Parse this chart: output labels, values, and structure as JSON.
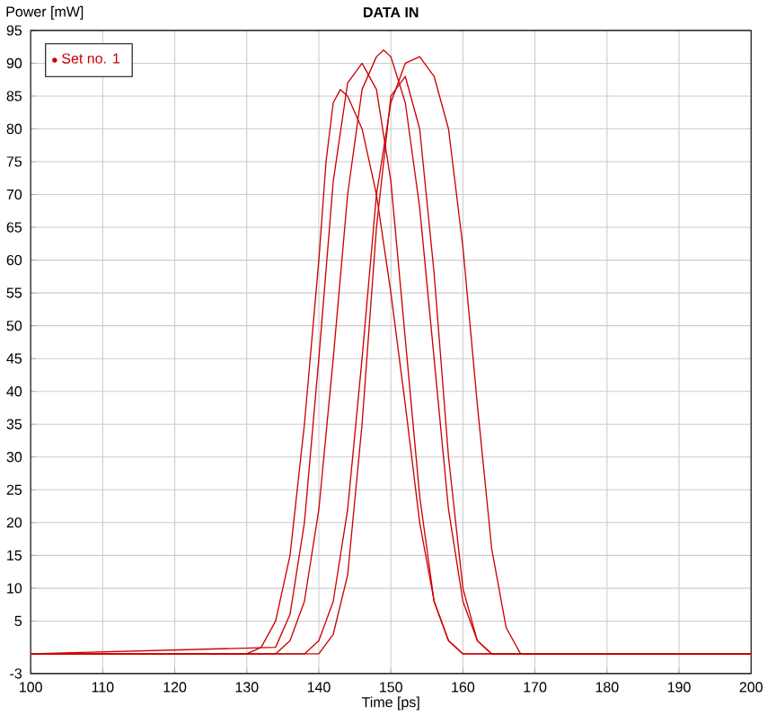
{
  "chart_data": {
    "type": "line",
    "title": "DATA IN",
    "xlabel": "Time [ps]",
    "ylabel": "Power [mW]",
    "xlim": [
      100,
      200
    ],
    "ylim": [
      -3,
      95
    ],
    "xticks": [
      100,
      110,
      120,
      130,
      140,
      150,
      160,
      170,
      180,
      190,
      200
    ],
    "yticks": [
      -3,
      5,
      10,
      15,
      20,
      25,
      30,
      35,
      40,
      45,
      50,
      55,
      60,
      65,
      70,
      75,
      80,
      85,
      90,
      95
    ],
    "grid": true,
    "legend": "top left",
    "series": [
      {
        "name": "Set no. 1",
        "color": "#cc0000",
        "x": [
          100,
          130,
          132,
          134,
          136,
          138,
          140,
          141,
          142,
          143,
          144,
          146,
          148,
          150,
          152,
          154,
          156,
          158,
          160,
          200
        ],
        "values": [
          0,
          0,
          1,
          5,
          15,
          35,
          60,
          75,
          84,
          86,
          85,
          80,
          70,
          55,
          38,
          20,
          8,
          2,
          0,
          0
        ]
      },
      {
        "color": "#cc0000",
        "x": [
          100,
          134,
          136,
          138,
          140,
          142,
          144,
          146,
          148,
          149,
          150,
          152,
          154,
          156,
          158,
          160,
          162,
          164,
          200
        ],
        "values": [
          0,
          0,
          2,
          8,
          22,
          45,
          70,
          86,
          91,
          92,
          91,
          84,
          68,
          45,
          22,
          8,
          2,
          0,
          0
        ]
      },
      {
        "color": "#cc0000",
        "x": [
          100,
          138,
          140,
          142,
          144,
          146,
          148,
          150,
          152,
          154,
          156,
          158,
          160,
          162,
          164,
          166,
          168,
          200
        ],
        "values": [
          0,
          0,
          2,
          8,
          22,
          45,
          70,
          84,
          90,
          91,
          88,
          80,
          62,
          38,
          16,
          4,
          0,
          0
        ]
      },
      {
        "color": "#cc0000",
        "x": [
          100,
          134,
          136,
          138,
          140,
          142,
          144,
          146,
          148,
          150,
          152,
          154,
          156,
          158,
          160,
          200
        ],
        "values": [
          0,
          1,
          6,
          20,
          45,
          72,
          87,
          90,
          86,
          72,
          48,
          24,
          8,
          2,
          0,
          0
        ]
      },
      {
        "color": "#cc0000",
        "x": [
          100,
          140,
          142,
          144,
          146,
          148,
          150,
          152,
          154,
          156,
          158,
          160,
          162,
          164,
          200
        ],
        "values": [
          0,
          0,
          3,
          12,
          35,
          65,
          85,
          88,
          80,
          58,
          30,
          10,
          2,
          0,
          0
        ]
      }
    ]
  }
}
